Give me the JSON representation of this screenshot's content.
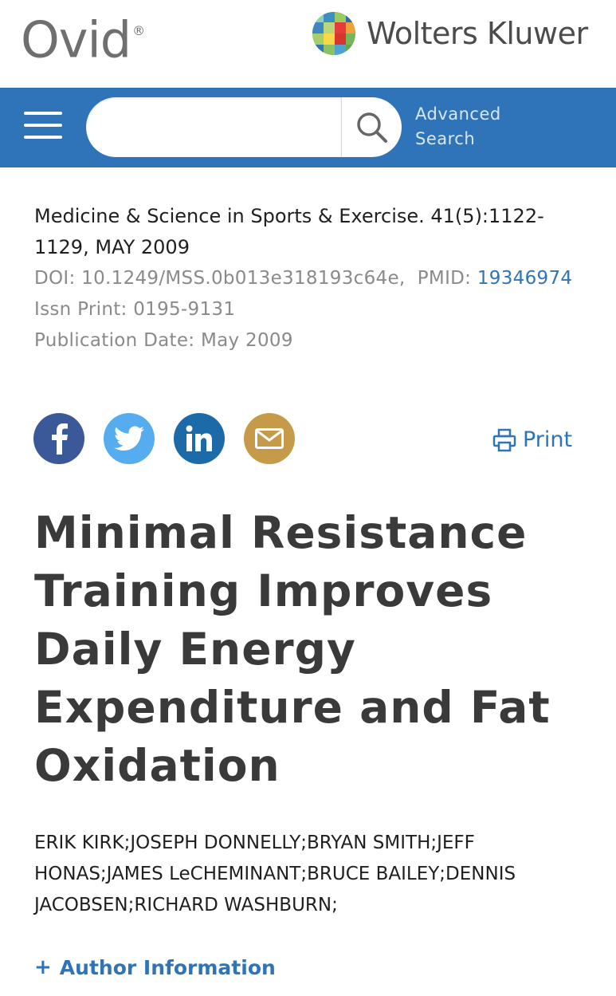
{
  "header": {
    "ovid_logo": "Ovid",
    "ovid_reg": "®",
    "publisher_logo": "Wolters Kluwer"
  },
  "search": {
    "placeholder": "",
    "advanced_label": "Advanced Search"
  },
  "citation": {
    "journal": "Medicine & Science in Sports & Exercise. 41(5):1122-1129, MAY 2009",
    "doi": "DOI: 10.1249/MSS.0b013e318193c64e,",
    "pmid_label": "PMID:",
    "pmid_value": "19346974",
    "issn": "Issn Print: 0195-9131",
    "pub_date": "Publication Date: May 2009"
  },
  "share": {
    "print_label": "Print"
  },
  "article": {
    "title": "Minimal Resistance Training Improves Daily Energy Expenditure and Fat Oxidation",
    "authors": "ERIK KIRK;JOSEPH DONNELLY;BRYAN SMITH;JEFF HONAS;JAMES LeCHEMINANT;BRUCE BAILEY;DENNIS JACOBSEN;RICHARD WASHBURN;",
    "author_info_label": "Author Information"
  },
  "colors": {
    "brand_blue": "#2f74b9",
    "facebook": "#3b5998",
    "twitter": "#55acee",
    "linkedin": "#1c6aa8",
    "email": "#c59a48"
  },
  "icons": [
    "menu-icon",
    "search-icon",
    "facebook-icon",
    "twitter-icon",
    "linkedin-icon",
    "email-icon",
    "print-icon",
    "plus-icon"
  ]
}
